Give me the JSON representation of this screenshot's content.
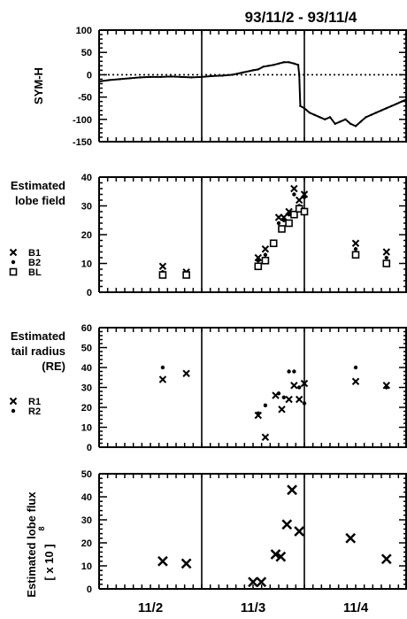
{
  "title": "93/11/2 - 93/11/4",
  "x_axis": {
    "tick_labels": [
      "11/2",
      "11/3",
      "11/4"
    ],
    "day_boundaries": [
      2.5,
      3.5
    ],
    "xlim": [
      1.5,
      4.5
    ]
  },
  "chart_data": [
    {
      "type": "line",
      "panel": "sym-h",
      "ylabel": "SYM-H",
      "ylim": [
        -150,
        100
      ],
      "yticks": [
        100,
        50,
        0,
        -50,
        -100,
        -150
      ],
      "zero_line": true,
      "series": [
        {
          "x": [
            1.5,
            1.6,
            1.7,
            1.8,
            1.9,
            2.0,
            2.1,
            2.2,
            2.3,
            2.4,
            2.5,
            2.6,
            2.7,
            2.8,
            2.9,
            3.0,
            3.05,
            3.1,
            3.15,
            3.2,
            3.25,
            3.3,
            3.35,
            3.4,
            3.44,
            3.45,
            3.46,
            3.5,
            3.55,
            3.6,
            3.65,
            3.7,
            3.75,
            3.8,
            3.85,
            3.9,
            3.95,
            4.0,
            4.05,
            4.1,
            4.15,
            4.2,
            4.25,
            4.3,
            4.35,
            4.4,
            4.45,
            4.5
          ],
          "values": [
            -15,
            -12,
            -10,
            -8,
            -6,
            -5,
            -5,
            -4,
            -5,
            -6,
            -5,
            -3,
            -2,
            0,
            5,
            10,
            12,
            18,
            20,
            22,
            25,
            28,
            28,
            25,
            22,
            0,
            -70,
            -75,
            -85,
            -90,
            -95,
            -100,
            -95,
            -110,
            -105,
            -100,
            -110,
            -115,
            -105,
            -95,
            -90,
            -85,
            -80,
            -75,
            -70,
            -65,
            -60,
            -55
          ]
        }
      ]
    },
    {
      "type": "scatter",
      "panel": "lobe-field",
      "ylabel": [
        "Estimated",
        "lobe field"
      ],
      "ylim": [
        0,
        40
      ],
      "yticks": [
        40,
        30,
        20,
        10,
        0
      ],
      "series": [
        {
          "name": "B1",
          "marker": "x",
          "x": [
            2.12,
            2.35,
            3.05,
            3.12,
            3.25,
            3.3,
            3.35,
            3.4,
            3.45,
            3.5,
            4.0,
            4.3
          ],
          "values": [
            9,
            7,
            12,
            15,
            26,
            26,
            28,
            36,
            32,
            34,
            17,
            14
          ]
        },
        {
          "name": "B2",
          "marker": "dot",
          "x": [
            2.12,
            2.35,
            3.05,
            3.12,
            3.25,
            3.3,
            3.35,
            3.4,
            3.45,
            3.5,
            4.0,
            4.3
          ],
          "values": [
            7,
            6,
            11,
            13,
            24,
            25,
            27,
            34,
            30,
            33,
            15,
            12
          ]
        },
        {
          "name": "BL",
          "marker": "square",
          "x": [
            2.12,
            2.35,
            3.05,
            3.12,
            3.2,
            3.28,
            3.35,
            3.4,
            3.45,
            3.5,
            4.0,
            4.3
          ],
          "values": [
            6,
            6,
            9,
            11,
            17,
            22,
            24,
            27,
            29,
            28,
            13,
            10
          ]
        }
      ]
    },
    {
      "type": "scatter",
      "panel": "tail-radius",
      "ylabel": [
        "Estimated",
        "tail radius",
        "(RE)"
      ],
      "ylim": [
        0,
        60
      ],
      "yticks": [
        60,
        50,
        40,
        30,
        20,
        10,
        0
      ],
      "series": [
        {
          "name": "R1",
          "marker": "x",
          "x": [
            2.12,
            2.35,
            3.05,
            3.12,
            3.22,
            3.28,
            3.35,
            3.4,
            3.45,
            3.5,
            4.0,
            4.3
          ],
          "values": [
            34,
            37,
            16,
            5,
            26,
            19,
            24,
            31,
            24,
            32,
            33,
            31
          ]
        },
        {
          "name": "R2",
          "marker": "dot",
          "x": [
            2.12,
            3.05,
            3.12,
            3.25,
            3.3,
            3.35,
            3.4,
            3.45,
            3.5,
            4.0,
            4.3
          ],
          "values": [
            40,
            17,
            21,
            27,
            25,
            38,
            38,
            30,
            22,
            40,
            30
          ]
        }
      ]
    },
    {
      "type": "scatter",
      "panel": "lobe-flux",
      "ylabel": [
        "Estimated lobe flux",
        "[ x 10 ]"
      ],
      "ylabel_superscript": "8",
      "ylim": [
        0,
        50
      ],
      "yticks": [
        50,
        40,
        30,
        20,
        10,
        0
      ],
      "series": [
        {
          "marker": "x",
          "x": [
            2.12,
            2.35,
            3.0,
            3.08,
            3.22,
            3.27,
            3.33,
            3.38,
            3.45,
            3.95,
            4.3
          ],
          "values": [
            12,
            11,
            3,
            3,
            15,
            14,
            28,
            43,
            25,
            22,
            13
          ]
        }
      ]
    }
  ]
}
